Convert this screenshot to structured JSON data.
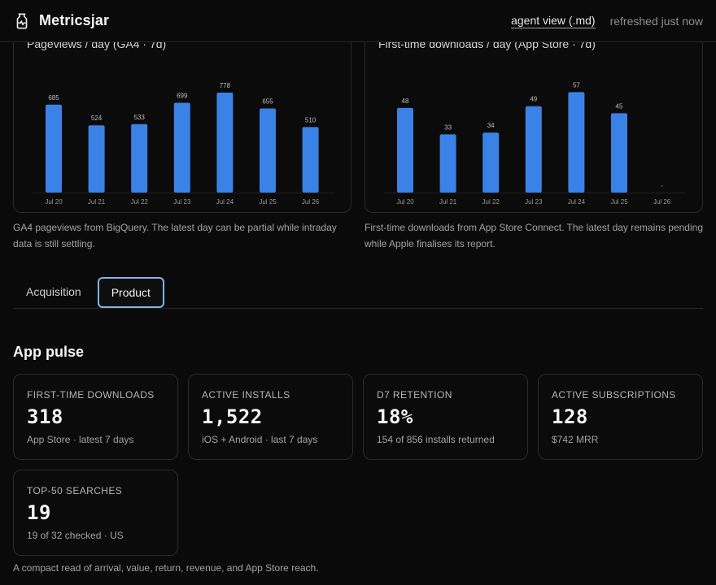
{
  "app": {
    "name": "Metricsjar",
    "agent_view_label": "agent view (.md)",
    "refresh_status": "refreshed just now"
  },
  "charts": [
    {
      "title": "Pageviews / day (GA4 · 7d)",
      "caption": "GA4 pageviews from BigQuery. The latest day can be partial while intraday data is still settling.",
      "chart_data": {
        "type": "bar",
        "categories": [
          "Jul 20",
          "Jul 21",
          "Jul 22",
          "Jul 23",
          "Jul 24",
          "Jul 25",
          "Jul 26"
        ],
        "values": [
          685,
          524,
          533,
          699,
          778,
          655,
          510
        ],
        "ylim": [
          0,
          810
        ],
        "bar_color": "#3b82e6",
        "grid": false
      }
    },
    {
      "title": "First-time downloads / day (App Store · 7d)",
      "caption": "First-time downloads from App Store Connect. The latest day remains pending while Apple finalises its report.",
      "chart_data": {
        "type": "bar",
        "categories": [
          "Jul 20",
          "Jul 21",
          "Jul 22",
          "Jul 23",
          "Jul 24",
          "Jul 25",
          "Jul 26"
        ],
        "values": [
          48,
          33,
          34,
          49,
          57,
          45,
          null
        ],
        "ylim": [
          0,
          59
        ],
        "bar_color": "#3b82e6",
        "grid": false
      }
    }
  ],
  "tabs": [
    {
      "label": "Acquisition",
      "active": false
    },
    {
      "label": "Product",
      "active": true
    }
  ],
  "section_title": "App pulse",
  "metrics": [
    {
      "label": "FIRST-TIME DOWNLOADS",
      "value": "318",
      "sub": "App Store · latest 7 days"
    },
    {
      "label": "ACTIVE INSTALLS",
      "value": "1,522",
      "sub": "iOS + Android · last 7 days"
    },
    {
      "label": "D7 RETENTION",
      "value": "18%",
      "sub": "154 of 856 installs returned"
    },
    {
      "label": "ACTIVE SUBSCRIPTIONS",
      "value": "128",
      "sub": "$742 MRR"
    },
    {
      "label": "TOP-50 SEARCHES",
      "value": "19",
      "sub": "19 of 32 checked · US"
    }
  ],
  "footnote": "A compact read of arrival, value, return, revenue, and App Store reach.",
  "colors": {
    "background": "#0a0a0a",
    "border": "#2a2a2a",
    "bar": "#3b82e6",
    "active_tab_outline": "#7fb6ea"
  }
}
